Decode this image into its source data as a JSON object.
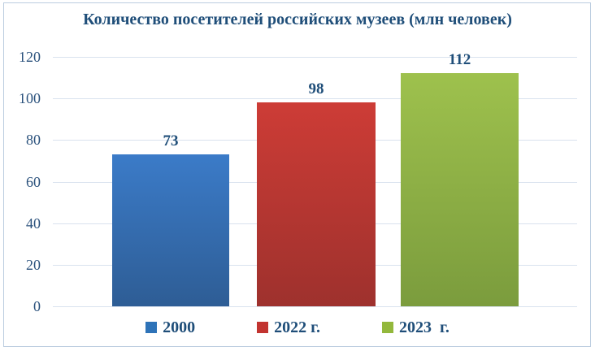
{
  "title": "Количество посетителей российских музеев (млн человек)",
  "colors": {
    "title_text": "#1f4e79",
    "axis_text": "#2a517c",
    "gridline": "#d9e2ee",
    "frame_border": "#bccde0",
    "background": "#ffffff"
  },
  "chart_data": {
    "type": "bar",
    "title": "Количество посетителей российских музеев (млн человек)",
    "categories": [
      "2000",
      "2022 г.",
      "2023  г."
    ],
    "values": [
      73,
      98,
      112
    ],
    "data_labels": [
      "73",
      "98",
      "112"
    ],
    "series_colors": [
      {
        "name": "2000",
        "bar_top": "#3b7bc8",
        "bar_bottom": "#2e5d95",
        "legend": "#2e73b8"
      },
      {
        "name": "2022 г.",
        "bar_top": "#cd3c36",
        "bar_bottom": "#9e312d",
        "legend": "#c23430"
      },
      {
        "name": "2023  г.",
        "bar_top": "#9ec14d",
        "bar_bottom": "#7b9c3d",
        "legend": "#93b83c"
      }
    ],
    "xlabel": "",
    "ylabel": "",
    "ylim": [
      0,
      120
    ],
    "yticks": [
      0,
      20,
      40,
      60,
      80,
      100,
      120
    ],
    "grid": true,
    "legend_position": "bottom"
  }
}
